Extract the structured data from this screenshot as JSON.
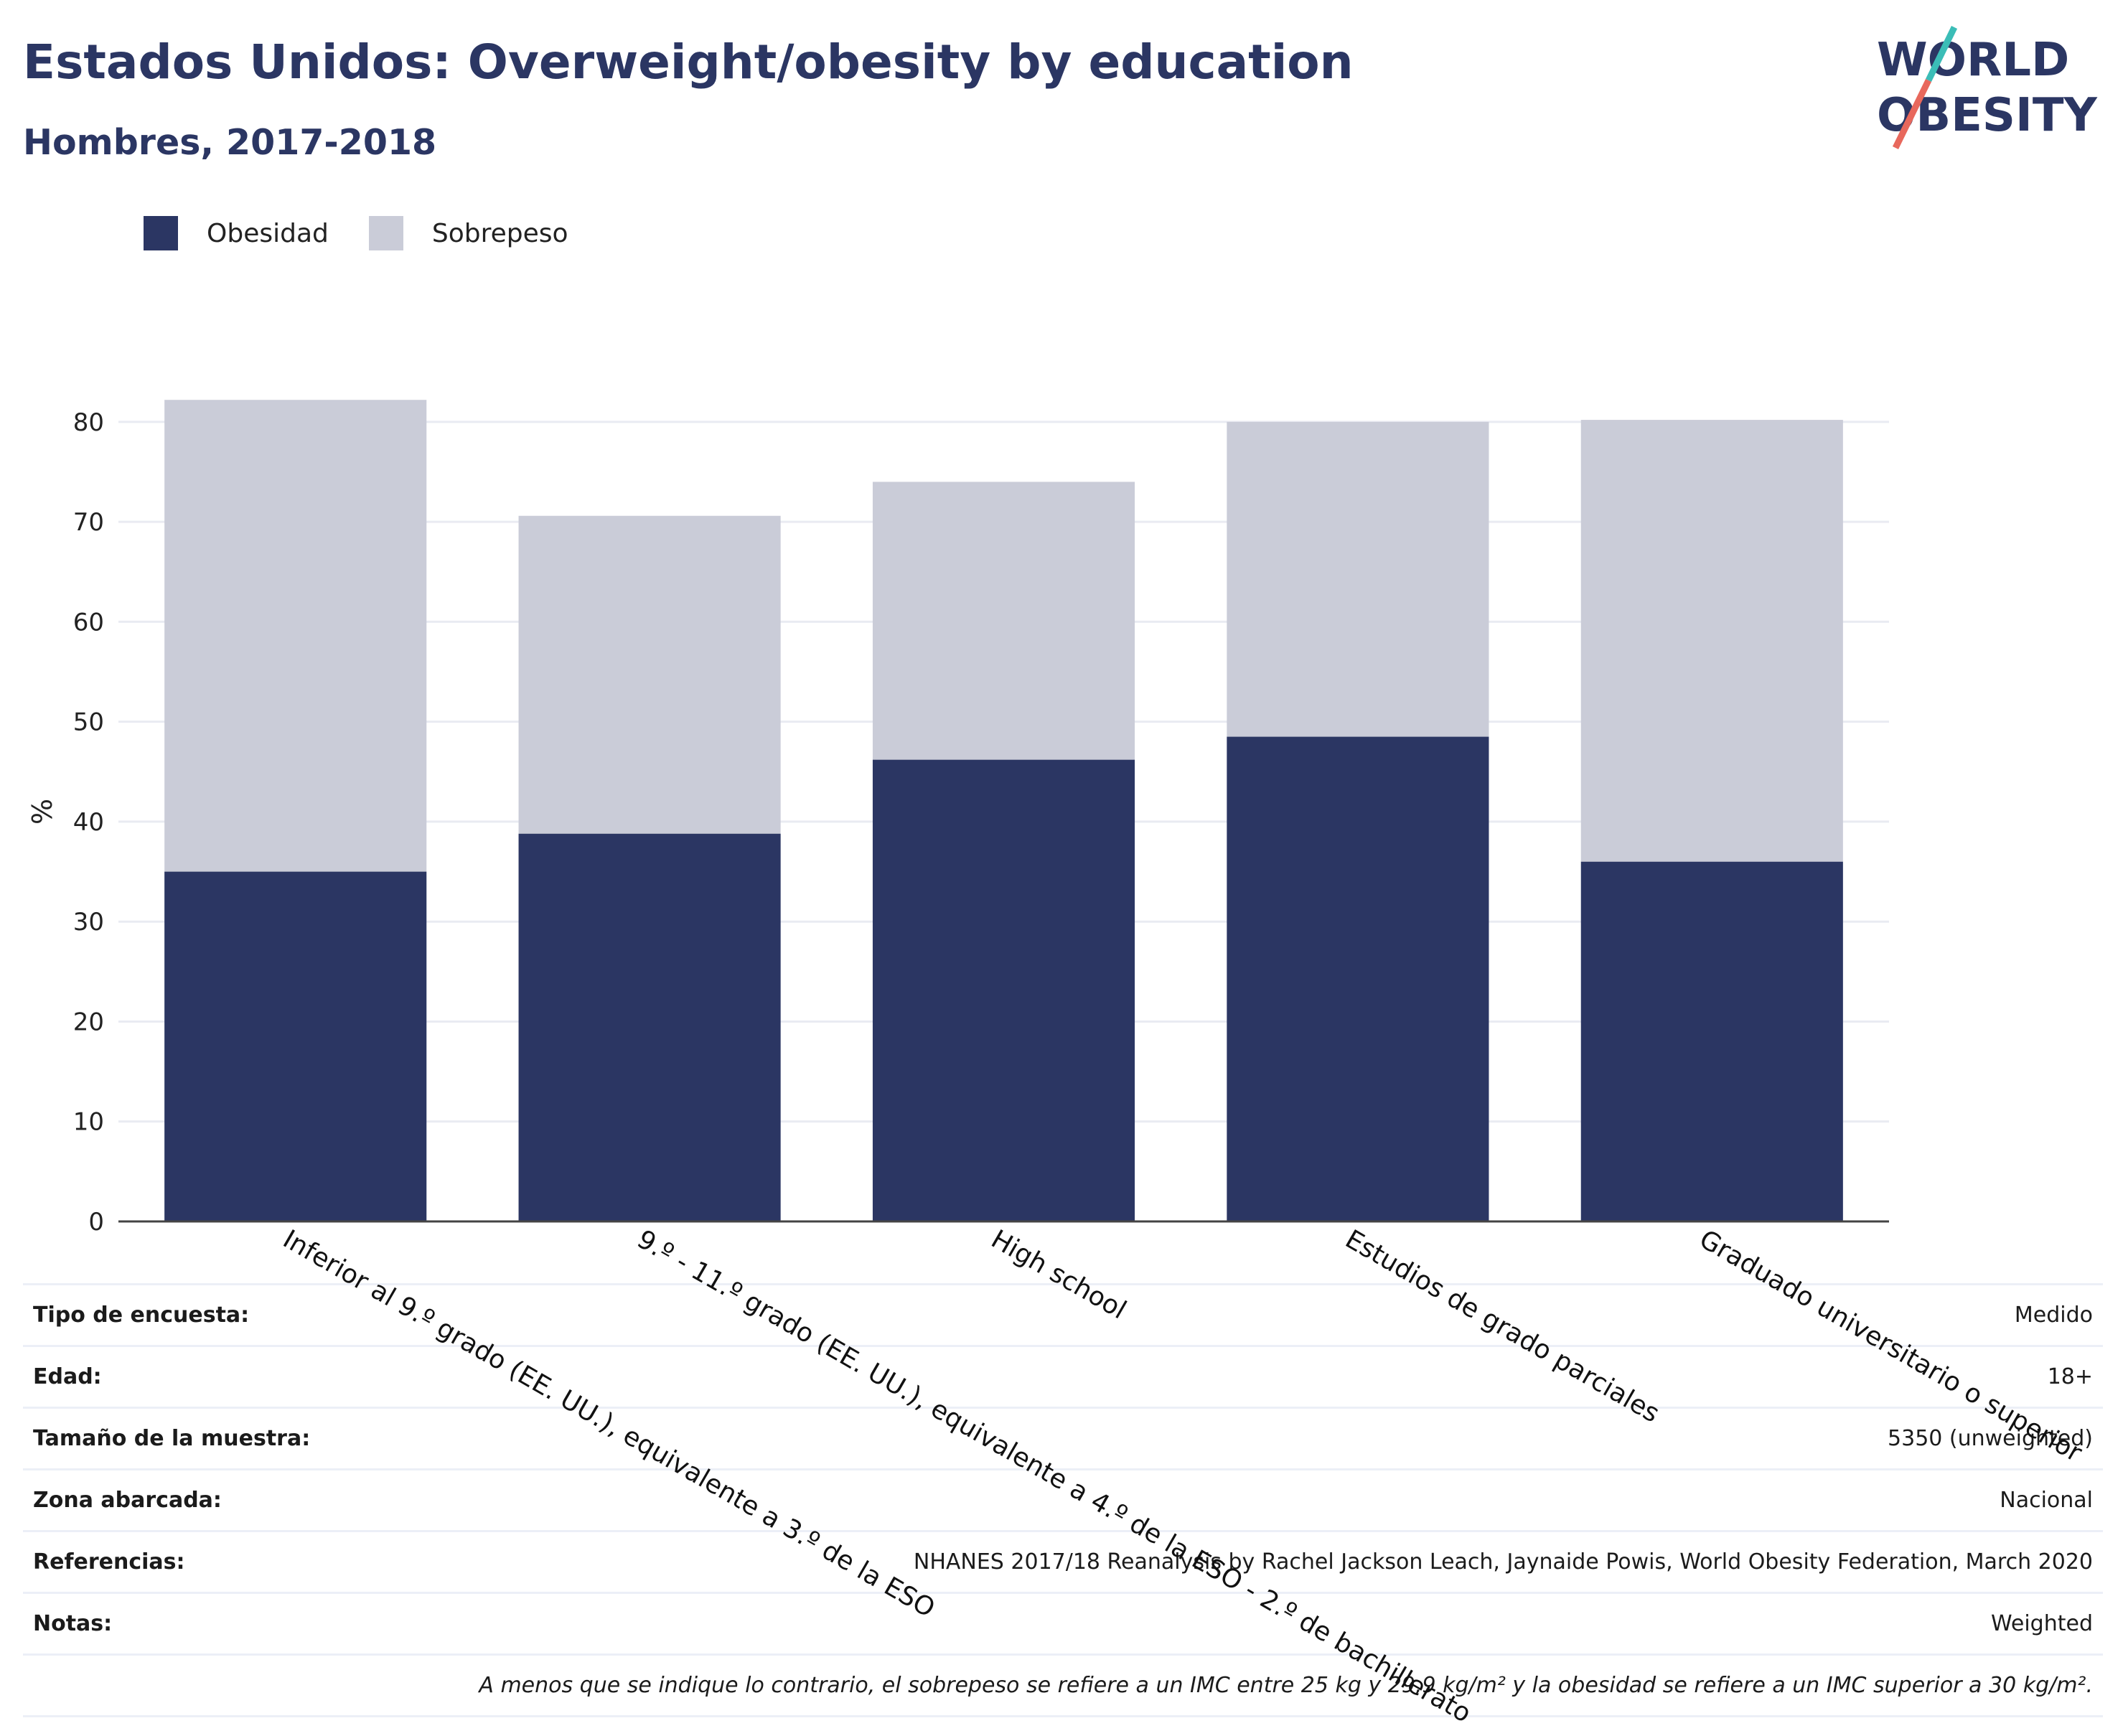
{
  "header": {
    "title": "Estados Unidos: Overweight/obesity by education",
    "subtitle": "Hombres, 2017-2018"
  },
  "logo": {
    "line1": "WORLD",
    "line2": "OBESITY"
  },
  "legend": [
    {
      "label": "Obesidad",
      "color": "#2b3663"
    },
    {
      "label": "Sobrepeso",
      "color": "#caccd8"
    }
  ],
  "chart_data": {
    "type": "bar",
    "stacked": true,
    "title": "Estados Unidos: Overweight/obesity by education",
    "subtitle": "Hombres, 2017-2018",
    "xlabel": "",
    "ylabel": "%",
    "ylim": [
      0,
      82
    ],
    "yticks": [
      0,
      10,
      20,
      30,
      40,
      50,
      60,
      70,
      80
    ],
    "grid": true,
    "legend_position": "top-left",
    "categories": [
      "Inferior al 9.º grado (EE. UU.), equivalente a 3.º de la ESO",
      "9.º - 11.º grado (EE. UU.), equivalente a 4.º de la ESO - 2.º de bachillerato",
      "High school",
      "Estudios de grado parciales",
      "Graduado universitario o superior"
    ],
    "series": [
      {
        "name": "Obesidad",
        "color": "#2b3663",
        "values": [
          35.0,
          38.8,
          46.2,
          48.5,
          36.0
        ]
      },
      {
        "name": "Sobrepeso",
        "color": "#caccd8",
        "values": [
          47.2,
          31.8,
          27.8,
          31.5,
          44.2
        ]
      }
    ]
  },
  "info": {
    "rows": [
      {
        "label": "Tipo de encuesta:",
        "value": "Medido"
      },
      {
        "label": "Edad:",
        "value": "18+"
      },
      {
        "label": "Tamaño de la muestra:",
        "value": "5350 (unweighted)"
      },
      {
        "label": "Zona abarcada:",
        "value": "Nacional"
      },
      {
        "label": "Referencias:",
        "value": "NHANES 2017/18 Reanalysis by Rachel Jackson Leach, Jaynaide Powis, World Obesity Federation, March 2020"
      },
      {
        "label": "Notas:",
        "value": "Weighted"
      }
    ],
    "note": "A menos que se indique lo contrario, el sobrepeso se refiere a un IMC entre 25 kg y 29,9 kg/m² y la obesidad se refiere a un IMC superior a 30 kg/m²."
  }
}
